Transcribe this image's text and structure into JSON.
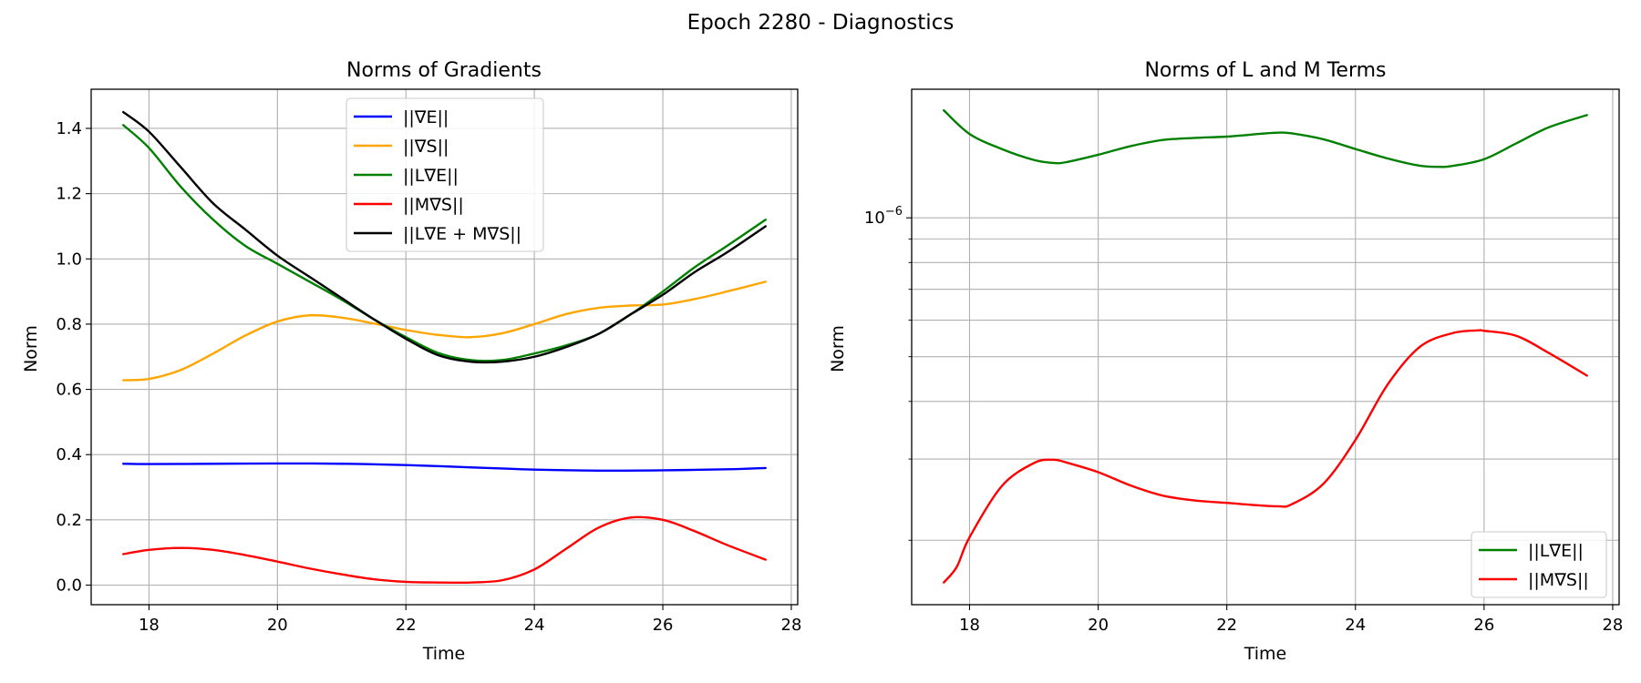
{
  "figure": {
    "suptitle": "Epoch 2280 - Diagnostics"
  },
  "chart_data": [
    {
      "type": "line",
      "title": "Norms of Gradients",
      "xlabel": "Time",
      "ylabel": "Norm",
      "xlim": [
        17.1,
        28.1
      ],
      "ylim": [
        -0.06,
        1.52
      ],
      "yscale": "linear",
      "xticks": [
        18,
        20,
        22,
        24,
        26,
        28
      ],
      "yticks": [
        0.0,
        0.2,
        0.4,
        0.6,
        0.8,
        1.0,
        1.2,
        1.4
      ],
      "xtick_labels": [
        "18",
        "20",
        "22",
        "24",
        "26",
        "28"
      ],
      "ytick_labels": [
        "0.0",
        "0.2",
        "0.4",
        "0.6",
        "0.8",
        "1.0",
        "1.2",
        "1.4"
      ],
      "grid": true,
      "legend_position": "upper center",
      "series": [
        {
          "name": "||∇E||",
          "color": "#0000ff",
          "x": [
            17.6,
            18.0,
            19.0,
            20.0,
            21.0,
            22.0,
            23.0,
            24.0,
            25.0,
            26.0,
            27.0,
            27.6
          ],
          "y": [
            0.372,
            0.371,
            0.372,
            0.373,
            0.372,
            0.368,
            0.361,
            0.354,
            0.351,
            0.352,
            0.355,
            0.359
          ]
        },
        {
          "name": "||∇S||",
          "color": "#ffa500",
          "x": [
            17.6,
            18.0,
            18.5,
            19.0,
            19.5,
            20.0,
            20.5,
            21.0,
            21.5,
            22.0,
            22.5,
            23.0,
            23.5,
            24.0,
            24.5,
            25.0,
            25.5,
            26.0,
            26.5,
            27.0,
            27.6
          ],
          "y": [
            0.628,
            0.632,
            0.66,
            0.71,
            0.765,
            0.808,
            0.827,
            0.82,
            0.802,
            0.782,
            0.767,
            0.76,
            0.772,
            0.8,
            0.831,
            0.85,
            0.857,
            0.86,
            0.877,
            0.9,
            0.93
          ]
        },
        {
          "name": "||L∇E||",
          "color": "#008000",
          "x": [
            17.6,
            18.0,
            18.5,
            19.0,
            19.5,
            20.0,
            20.5,
            21.0,
            21.5,
            22.0,
            22.5,
            23.0,
            23.5,
            24.0,
            24.5,
            25.0,
            25.5,
            26.0,
            26.5,
            27.0,
            27.6
          ],
          "y": [
            1.41,
            1.34,
            1.22,
            1.12,
            1.04,
            0.985,
            0.93,
            0.875,
            0.815,
            0.76,
            0.712,
            0.69,
            0.69,
            0.71,
            0.735,
            0.77,
            0.83,
            0.9,
            0.975,
            1.04,
            1.12
          ]
        },
        {
          "name": "||M∇S||",
          "color": "#ff0000",
          "x": [
            17.6,
            18.0,
            18.5,
            19.0,
            19.5,
            20.0,
            20.5,
            21.0,
            21.5,
            22.0,
            22.5,
            23.0,
            23.5,
            24.0,
            24.5,
            25.0,
            25.5,
            26.0,
            26.5,
            27.0,
            27.6
          ],
          "y": [
            0.095,
            0.108,
            0.114,
            0.108,
            0.092,
            0.072,
            0.051,
            0.033,
            0.018,
            0.01,
            0.008,
            0.008,
            0.015,
            0.048,
            0.112,
            0.176,
            0.207,
            0.2,
            0.165,
            0.123,
            0.078
          ]
        },
        {
          "name": "||L∇E + M∇S||",
          "color": "#000000",
          "x": [
            17.6,
            18.0,
            18.5,
            19.0,
            19.5,
            20.0,
            20.5,
            21.0,
            21.5,
            22.0,
            22.5,
            23.0,
            23.5,
            24.0,
            24.5,
            25.0,
            25.5,
            26.0,
            26.5,
            27.0,
            27.6
          ],
          "y": [
            1.45,
            1.39,
            1.28,
            1.17,
            1.09,
            1.01,
            0.945,
            0.88,
            0.815,
            0.755,
            0.705,
            0.685,
            0.685,
            0.7,
            0.73,
            0.77,
            0.83,
            0.89,
            0.96,
            1.02,
            1.1
          ]
        }
      ]
    },
    {
      "type": "line",
      "title": "Norms of L and M Terms",
      "xlabel": "Time",
      "ylabel": "Norm",
      "xlim": [
        17.1,
        28.1
      ],
      "ylim": [
        1.45e-07,
        1.9e-06
      ],
      "yscale": "log",
      "xticks": [
        18,
        20,
        22,
        24,
        26,
        28
      ],
      "xtick_labels": [
        "18",
        "20",
        "22",
        "24",
        "26",
        "28"
      ],
      "ytick_labels": [
        "10",
        "−6"
      ],
      "ytick_major": [
        1e-06
      ],
      "ytick_minor": [
        2e-07,
        3e-07,
        4e-07,
        5e-07,
        6e-07,
        7e-07,
        8e-07,
        9e-07
      ],
      "grid": true,
      "legend_position": "lower right",
      "series": [
        {
          "name": "||L∇E||",
          "color": "#008000",
          "x": [
            17.6,
            18.0,
            18.5,
            19.0,
            19.3,
            19.5,
            20.0,
            20.5,
            21.0,
            21.5,
            22.0,
            22.5,
            22.8,
            23.0,
            23.5,
            24.0,
            24.5,
            25.0,
            25.3,
            25.5,
            26.0,
            26.5,
            27.0,
            27.6
          ],
          "y": [
            1.71e-06,
            1.52e-06,
            1.41e-06,
            1.335e-06,
            1.315e-06,
            1.32e-06,
            1.37e-06,
            1.43e-06,
            1.475e-06,
            1.49e-06,
            1.5e-06,
            1.52e-06,
            1.53e-06,
            1.525e-06,
            1.48e-06,
            1.41e-06,
            1.345e-06,
            1.297e-06,
            1.29e-06,
            1.295e-06,
            1.34e-06,
            1.45e-06,
            1.57e-06,
            1.67e-06
          ]
        },
        {
          "name": "||M∇S||",
          "color": "#ff0000",
          "x": [
            17.6,
            17.8,
            18.0,
            18.5,
            19.0,
            19.3,
            19.5,
            20.0,
            20.5,
            21.0,
            21.5,
            22.0,
            22.5,
            22.8,
            23.0,
            23.5,
            24.0,
            24.5,
            25.0,
            25.5,
            25.9,
            26.0,
            26.5,
            27.0,
            27.6
          ],
          "y": [
            1.62e-07,
            1.75e-07,
            2.03e-07,
            2.62e-07,
            2.94e-07,
            2.99e-07,
            2.95e-07,
            2.81e-07,
            2.63e-07,
            2.5e-07,
            2.44e-07,
            2.41e-07,
            2.38e-07,
            2.37e-07,
            2.39e-07,
            2.65e-07,
            3.3e-07,
            4.35e-07,
            5.25e-07,
            5.62e-07,
            5.7e-07,
            5.69e-07,
            5.55e-07,
            5.1e-07,
            4.55e-07
          ]
        }
      ]
    }
  ]
}
